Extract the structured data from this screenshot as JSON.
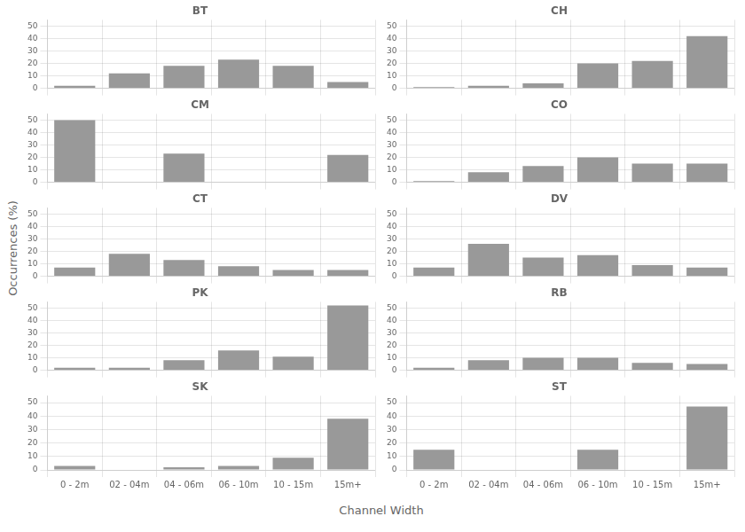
{
  "chart_data": [
    {
      "type": "bar",
      "title": "BT",
      "xlabel": "Channel Width",
      "ylabel": "Occurrences (%)",
      "categories": [
        "0 - 2m",
        "02 - 04m",
        "04 - 06m",
        "06 - 10m",
        "10 - 15m",
        "15m+"
      ],
      "values": [
        2,
        12,
        18,
        23,
        18,
        5
      ],
      "color": "#999999",
      "ylim": [
        0,
        55
      ],
      "yticks": [
        0,
        10,
        20,
        30,
        40,
        50
      ],
      "grid": true
    },
    {
      "type": "bar",
      "title": "CH",
      "categories": [
        "0 - 2m",
        "02 - 04m",
        "04 - 06m",
        "06 - 10m",
        "10 - 15m",
        "15m+"
      ],
      "values": [
        1,
        2,
        4,
        20,
        22,
        42
      ],
      "color": "#999999",
      "ylim": [
        0,
        55
      ],
      "yticks": [
        0,
        10,
        20,
        30,
        40,
        50
      ],
      "grid": true
    },
    {
      "type": "bar",
      "title": "CM",
      "categories": [
        "0 - 2m",
        "02 - 04m",
        "04 - 06m",
        "06 - 10m",
        "10 - 15m",
        "15m+"
      ],
      "values": [
        50,
        0,
        23,
        0,
        0,
        22
      ],
      "color": "#999999",
      "ylim": [
        0,
        55
      ],
      "yticks": [
        0,
        10,
        20,
        30,
        40,
        50
      ],
      "grid": true
    },
    {
      "type": "bar",
      "title": "CO",
      "categories": [
        "0 - 2m",
        "02 - 04m",
        "04 - 06m",
        "06 - 10m",
        "10 - 15m",
        "15m+"
      ],
      "values": [
        1,
        8,
        13,
        20,
        15,
        15
      ],
      "color": "#999999",
      "ylim": [
        0,
        55
      ],
      "yticks": [
        0,
        10,
        20,
        30,
        40,
        50
      ],
      "grid": true
    },
    {
      "type": "bar",
      "title": "CT",
      "categories": [
        "0 - 2m",
        "02 - 04m",
        "04 - 06m",
        "06 - 10m",
        "10 - 15m",
        "15m+"
      ],
      "values": [
        7,
        18,
        13,
        8,
        5,
        5
      ],
      "color": "#999999",
      "ylim": [
        0,
        55
      ],
      "yticks": [
        0,
        10,
        20,
        30,
        40,
        50
      ],
      "grid": true
    },
    {
      "type": "bar",
      "title": "DV",
      "categories": [
        "0 - 2m",
        "02 - 04m",
        "04 - 06m",
        "06 - 10m",
        "10 - 15m",
        "15m+"
      ],
      "values": [
        7,
        26,
        15,
        17,
        9,
        7
      ],
      "color": "#999999",
      "ylim": [
        0,
        55
      ],
      "yticks": [
        0,
        10,
        20,
        30,
        40,
        50
      ],
      "grid": true
    },
    {
      "type": "bar",
      "title": "PK",
      "categories": [
        "0 - 2m",
        "02 - 04m",
        "04 - 06m",
        "06 - 10m",
        "10 - 15m",
        "15m+"
      ],
      "values": [
        2,
        2,
        8,
        16,
        11,
        52
      ],
      "color": "#999999",
      "ylim": [
        0,
        55
      ],
      "yticks": [
        0,
        10,
        20,
        30,
        40,
        50
      ],
      "grid": true
    },
    {
      "type": "bar",
      "title": "RB",
      "categories": [
        "0 - 2m",
        "02 - 04m",
        "04 - 06m",
        "06 - 10m",
        "10 - 15m",
        "15m+"
      ],
      "values": [
        2,
        8,
        10,
        10,
        6,
        5
      ],
      "color": "#999999",
      "ylim": [
        0,
        55
      ],
      "yticks": [
        0,
        10,
        20,
        30,
        40,
        50
      ],
      "grid": true
    },
    {
      "type": "bar",
      "title": "SK",
      "categories": [
        "0 - 2m",
        "02 - 04m",
        "04 - 06m",
        "06 - 10m",
        "10 - 15m",
        "15m+"
      ],
      "values": [
        3,
        0,
        2,
        3,
        9,
        38
      ],
      "color": "#999999",
      "ylim": [
        0,
        55
      ],
      "yticks": [
        0,
        10,
        20,
        30,
        40,
        50
      ],
      "grid": true
    },
    {
      "type": "bar",
      "title": "ST",
      "categories": [
        "0 - 2m",
        "02 - 04m",
        "04 - 06m",
        "06 - 10m",
        "10 - 15m",
        "15m+"
      ],
      "values": [
        15,
        0,
        0,
        15,
        0,
        47
      ],
      "color": "#999999",
      "ylim": [
        0,
        55
      ],
      "yticks": [
        0,
        10,
        20,
        30,
        40,
        50
      ],
      "grid": true
    }
  ]
}
